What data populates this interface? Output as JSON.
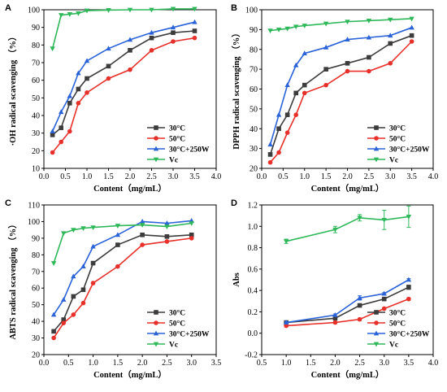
{
  "chart_data": [
    {
      "type": "line",
      "panel": "A",
      "xlabel": "Content（mg/mL）",
      "ylabel": "·OH radical scavenging （%）",
      "xlim": [
        0,
        4.0
      ],
      "ylim": [
        10,
        100
      ],
      "xticks": [
        "0.0",
        "0.5",
        "1.0",
        "1.5",
        "2.0",
        "2.5",
        "3.0",
        "3.5",
        "4.0"
      ],
      "yticks": [
        "10",
        "20",
        "30",
        "40",
        "50",
        "60",
        "70",
        "80",
        "90",
        "100"
      ],
      "legend_position": "lower-right",
      "series": [
        {
          "name": "30°C",
          "color": "#3c3c3c",
          "marker": "square",
          "x": [
            0.2,
            0.4,
            0.6,
            0.8,
            1.0,
            1.5,
            2.0,
            2.5,
            3.0,
            3.5
          ],
          "y": [
            29,
            33,
            47,
            55,
            61,
            68,
            77,
            84,
            87,
            88
          ]
        },
        {
          "name": "50°C",
          "color": "#e8302a",
          "marker": "circle",
          "x": [
            0.2,
            0.4,
            0.6,
            0.8,
            1.0,
            1.5,
            2.0,
            2.5,
            3.0,
            3.5
          ],
          "y": [
            19,
            25,
            31,
            47,
            53,
            61,
            66,
            77,
            82,
            84
          ]
        },
        {
          "name": "30°C+250W",
          "color": "#2a62d8",
          "marker": "triangle",
          "x": [
            0.2,
            0.4,
            0.6,
            0.8,
            1.0,
            1.5,
            2.0,
            2.5,
            3.0,
            3.5
          ],
          "y": [
            31,
            42,
            51,
            64,
            71,
            78,
            83,
            87,
            90,
            93
          ]
        },
        {
          "name": "Vc",
          "color": "#2fb85a",
          "marker": "triangle-down",
          "x": [
            0.2,
            0.4,
            0.6,
            0.8,
            1.0,
            1.5,
            2.0,
            2.5,
            3.0,
            3.5
          ],
          "y": [
            78,
            97,
            97.5,
            98,
            99.5,
            99.8,
            100,
            100,
            100.5,
            100.5
          ]
        }
      ]
    },
    {
      "type": "line",
      "panel": "B",
      "xlabel": "Content（mg/mL）",
      "ylabel": "DPPH radical scavenging （%）",
      "xlim": [
        0,
        4.0
      ],
      "ylim": [
        20,
        100
      ],
      "xticks": [
        "0.0",
        "0.5",
        "1.0",
        "1.5",
        "2.0",
        "2.5",
        "3.0",
        "3.5",
        "4.0"
      ],
      "yticks": [
        "20",
        "30",
        "40",
        "50",
        "60",
        "70",
        "80",
        "90",
        "100"
      ],
      "legend_position": "lower-right",
      "series": [
        {
          "name": "30°C",
          "color": "#3c3c3c",
          "marker": "square",
          "x": [
            0.2,
            0.4,
            0.6,
            0.8,
            1.0,
            1.5,
            2.0,
            2.5,
            3.0,
            3.5
          ],
          "y": [
            27,
            40,
            47,
            58,
            62,
            70,
            73,
            76,
            83,
            87
          ]
        },
        {
          "name": "50°C",
          "color": "#e8302a",
          "marker": "circle",
          "x": [
            0.2,
            0.4,
            0.6,
            0.8,
            1.0,
            1.5,
            2.0,
            2.5,
            3.0,
            3.5
          ],
          "y": [
            23,
            28,
            38,
            47,
            58,
            62,
            69,
            69,
            73,
            84
          ]
        },
        {
          "name": "30°C+250W",
          "color": "#2a62d8",
          "marker": "triangle",
          "x": [
            0.2,
            0.4,
            0.6,
            0.8,
            1.0,
            1.5,
            2.0,
            2.5,
            3.0,
            3.5
          ],
          "y": [
            32,
            47,
            62,
            72,
            78,
            81,
            85,
            86,
            87,
            91
          ]
        },
        {
          "name": "Vc",
          "color": "#2fb85a",
          "marker": "triangle-down",
          "x": [
            0.2,
            0.4,
            0.6,
            0.8,
            1.0,
            1.5,
            2.0,
            2.5,
            3.0,
            3.5
          ],
          "y": [
            89.5,
            90,
            90.5,
            91.5,
            92,
            93,
            94,
            94.5,
            95,
            95.5
          ]
        }
      ]
    },
    {
      "type": "line",
      "panel": "C",
      "xlabel": "Content（mg/mL）",
      "ylabel": "ABTS radical scavenging （%）",
      "xlim": [
        0,
        3.5
      ],
      "ylim": [
        20,
        110
      ],
      "xticks": [
        "0.0",
        "0.5",
        "1.0",
        "1.5",
        "2.0",
        "2.5",
        "3.0",
        "3.5"
      ],
      "yticks": [
        "20",
        "30",
        "40",
        "50",
        "60",
        "70",
        "80",
        "90",
        "100",
        "110"
      ],
      "legend_position": "lower-right",
      "series": [
        {
          "name": "30°C",
          "color": "#3c3c3c",
          "marker": "square",
          "x": [
            0.2,
            0.4,
            0.6,
            0.8,
            1.0,
            1.5,
            2.0,
            2.5,
            3.0
          ],
          "y": [
            34,
            41,
            55,
            59,
            75,
            86,
            92,
            91,
            92
          ]
        },
        {
          "name": "50°C",
          "color": "#e8302a",
          "marker": "circle",
          "x": [
            0.2,
            0.4,
            0.6,
            0.8,
            1.0,
            1.5,
            2.0,
            2.5,
            3.0
          ],
          "y": [
            30,
            39,
            44,
            51,
            63,
            73,
            86,
            88,
            90
          ]
        },
        {
          "name": "30°C+250W",
          "color": "#2a62d8",
          "marker": "triangle",
          "x": [
            0.2,
            0.4,
            0.6,
            0.8,
            1.0,
            1.5,
            2.0,
            2.5,
            3.0
          ],
          "y": [
            44,
            53,
            67,
            73,
            85,
            92,
            100,
            99,
            100.5
          ]
        },
        {
          "name": "Vc",
          "color": "#2fb85a",
          "marker": "triangle-down",
          "x": [
            0.2,
            0.4,
            0.6,
            0.8,
            1.0,
            1.5,
            2.0,
            2.5,
            3.0
          ],
          "y": [
            75,
            93,
            95,
            96,
            96.5,
            97.5,
            98,
            97,
            99
          ]
        }
      ]
    },
    {
      "type": "line",
      "panel": "D",
      "xlabel": "Content（mg/mL）",
      "ylabel": "Abs",
      "xlim": [
        0.5,
        4.0
      ],
      "ylim": [
        -0.2,
        1.2
      ],
      "xticks": [
        "0.5",
        "1.0",
        "1.5",
        "2.0",
        "2.5",
        "3.0",
        "3.5",
        "4.0"
      ],
      "yticks": [
        "-0.2",
        "0.0",
        "0.2",
        "0.4",
        "0.6",
        "0.8",
        "1.0",
        "1.2"
      ],
      "legend_position": "lower-right",
      "series": [
        {
          "name": "30°C",
          "color": "#3c3c3c",
          "marker": "square",
          "x": [
            1.0,
            2.0,
            2.5,
            3.0,
            3.5
          ],
          "y": [
            0.1,
            0.14,
            0.26,
            0.32,
            0.43
          ],
          "err": [
            0.01,
            0.01,
            0.01,
            0.01,
            0.02
          ]
        },
        {
          "name": "50°C",
          "color": "#e8302a",
          "marker": "circle",
          "x": [
            1.0,
            2.0,
            2.5,
            3.0,
            3.5
          ],
          "y": [
            0.07,
            0.1,
            0.13,
            0.23,
            0.32
          ],
          "err": [
            0.01,
            0.01,
            0.01,
            0.01,
            0.01
          ]
        },
        {
          "name": "30°C+250W",
          "color": "#2a62d8",
          "marker": "triangle",
          "x": [
            1.0,
            2.0,
            2.5,
            3.0,
            3.5
          ],
          "y": [
            0.1,
            0.17,
            0.33,
            0.37,
            0.5
          ],
          "err": [
            0.01,
            0.01,
            0.02,
            0.01,
            0.01
          ]
        },
        {
          "name": "Vc",
          "color": "#2fb85a",
          "marker": "triangle-down",
          "x": [
            1.0,
            2.0,
            2.5,
            3.0,
            3.5
          ],
          "y": [
            0.86,
            0.97,
            1.08,
            1.06,
            1.09
          ],
          "err": [
            0.02,
            0.03,
            0.03,
            0.09,
            0.1
          ]
        }
      ]
    }
  ]
}
